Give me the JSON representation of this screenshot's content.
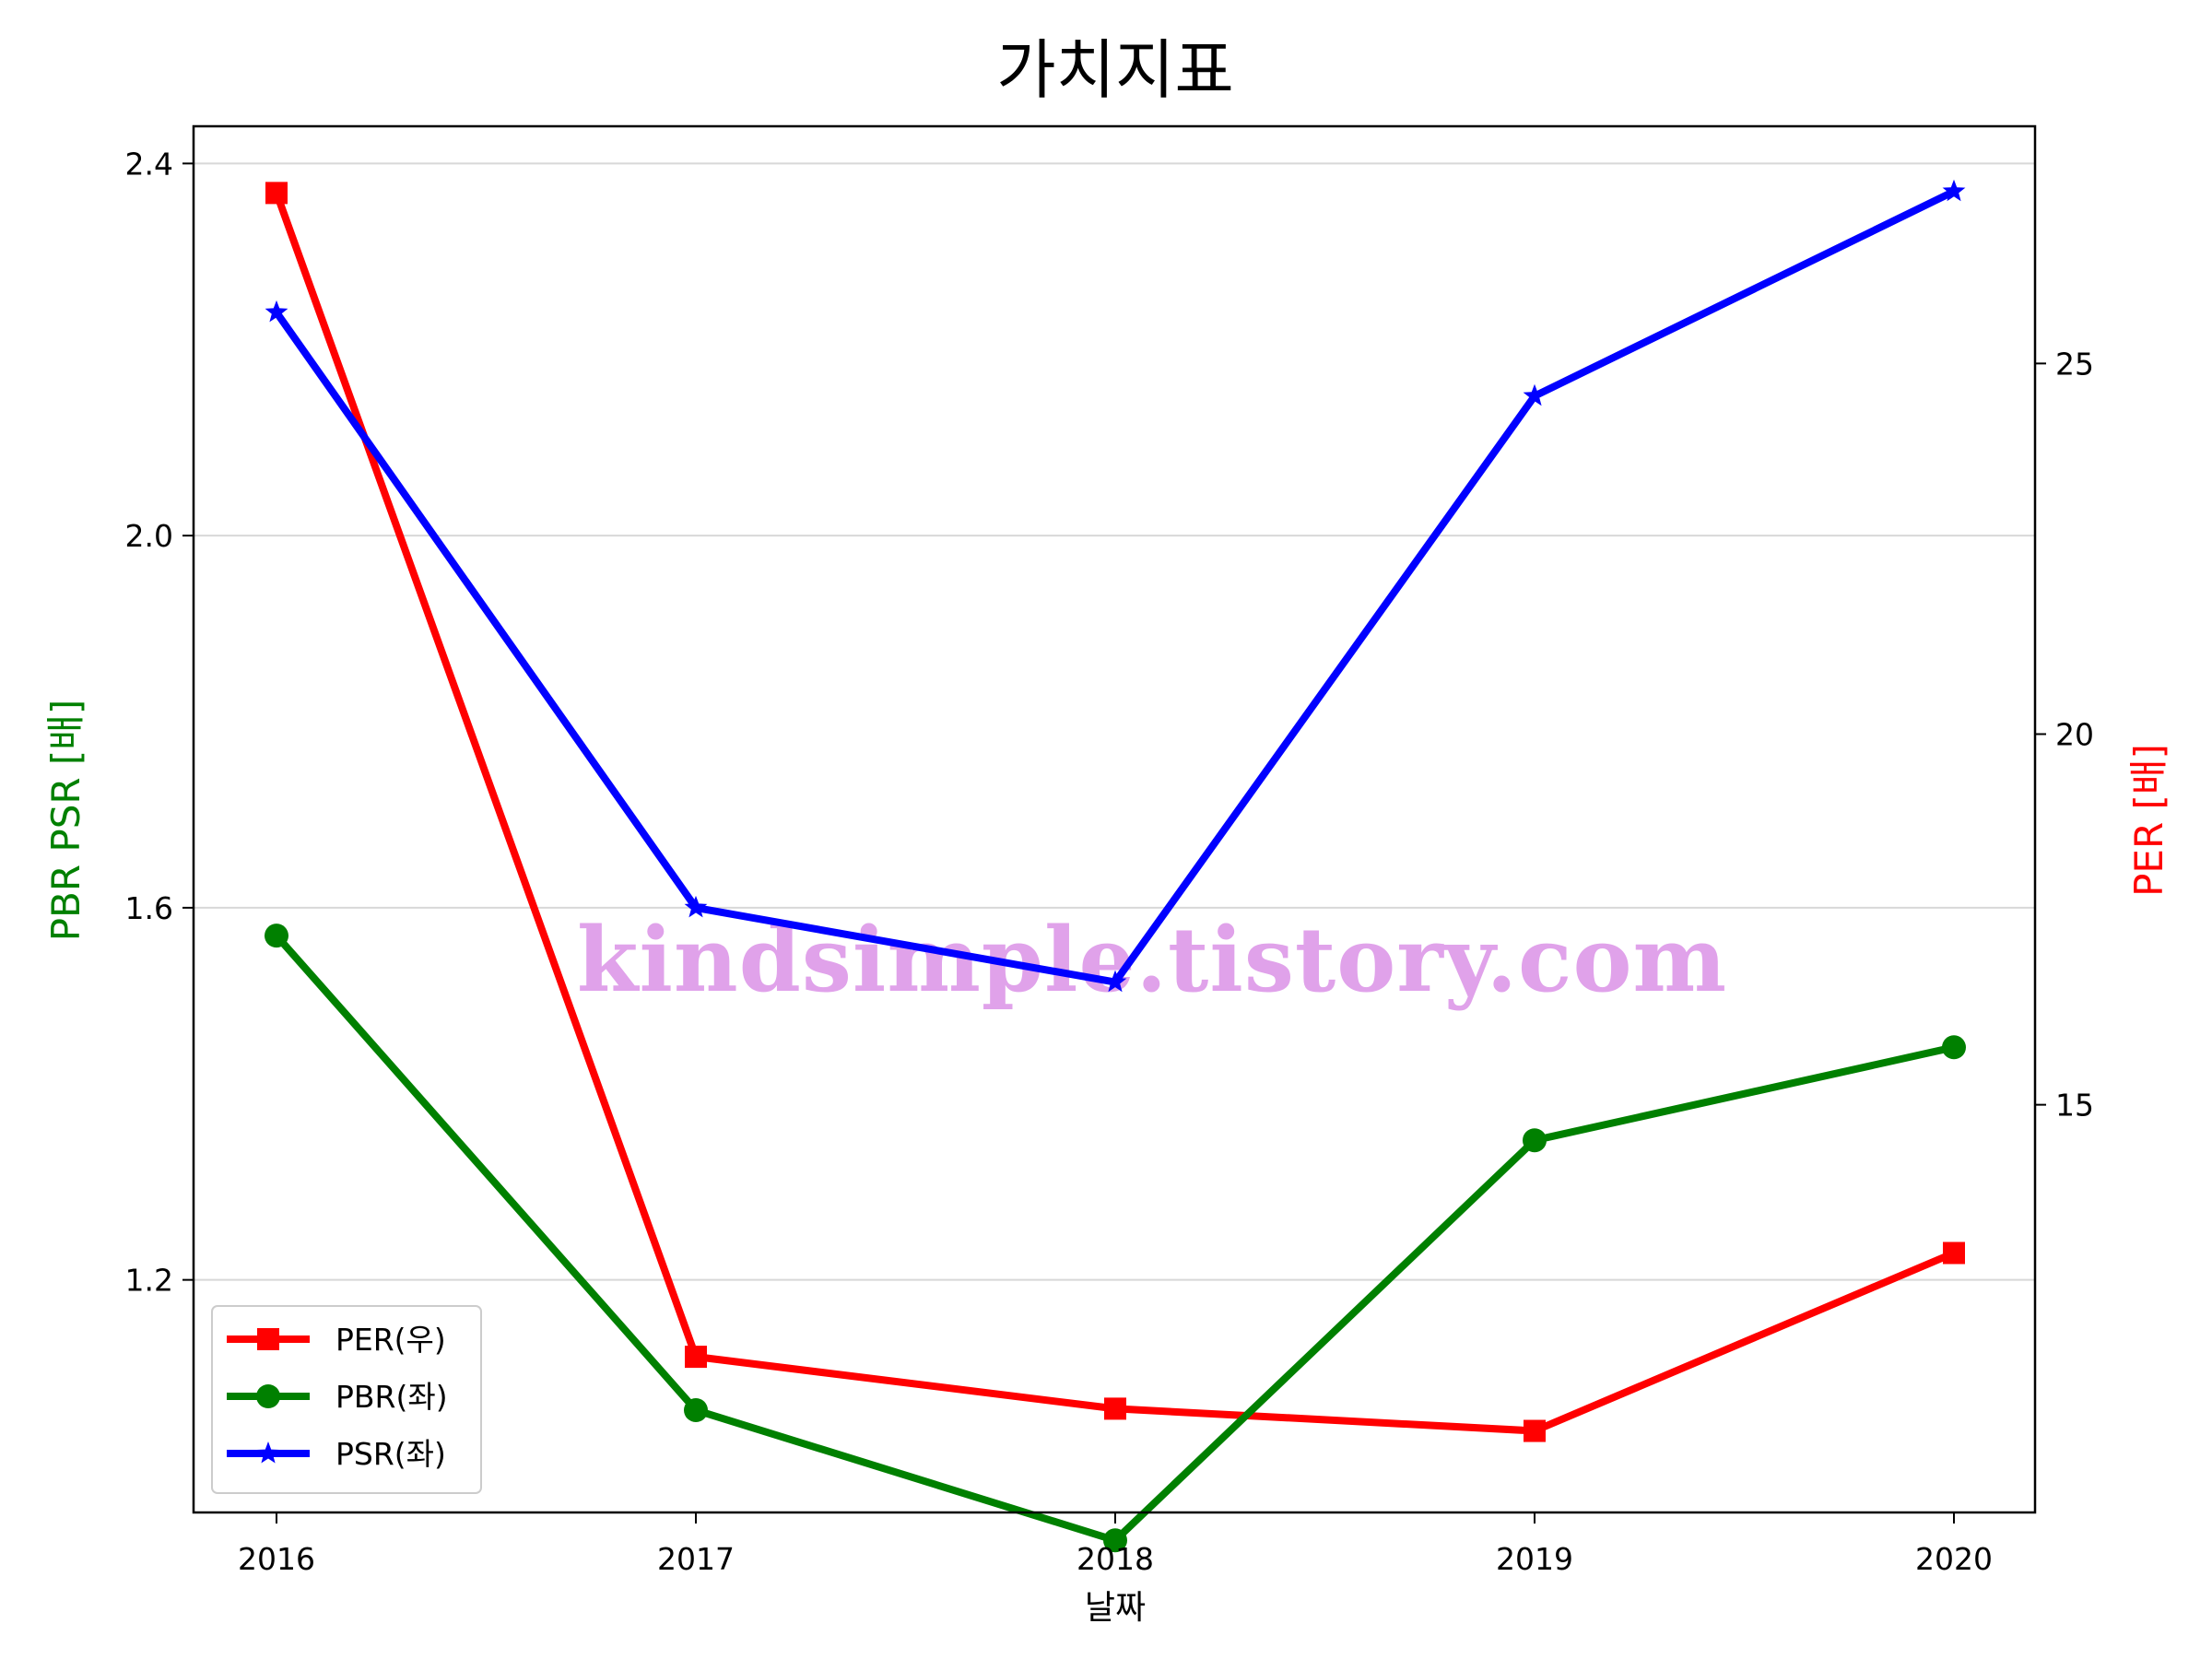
{
  "chart_data": {
    "type": "line",
    "title": "가치지표",
    "xlabel": "날짜",
    "ylabel_left": "PBR PSR [배]",
    "ylabel_right": "PER [배]",
    "x": [
      "2016",
      "2017",
      "2018",
      "2019",
      "2020"
    ],
    "ylim_left": [
      0.95,
      2.44
    ],
    "yticks_left": [
      "1.2",
      "1.6",
      "2.0",
      "2.4"
    ],
    "ylim_right": [
      9.5,
      28.2
    ],
    "yticks_right": [
      "15",
      "20",
      "25"
    ],
    "grid": "horizontal",
    "legend_position": "lower-left",
    "series": [
      {
        "name": "PER(우)",
        "axis": "right",
        "marker": "square",
        "color": "#ff0000",
        "values": [
          27.3,
          11.6,
          10.9,
          10.6,
          13.0
        ]
      },
      {
        "name": "PBR(좌)",
        "axis": "left",
        "marker": "circle",
        "color": "#008000",
        "values": [
          1.57,
          1.06,
          0.92,
          1.35,
          1.45
        ]
      },
      {
        "name": "PSR(좌)",
        "axis": "left",
        "marker": "star",
        "color": "#0000ff",
        "values": [
          2.24,
          1.6,
          1.52,
          2.15,
          2.37
        ]
      }
    ]
  },
  "watermark": "kindsimple.tistory.com"
}
